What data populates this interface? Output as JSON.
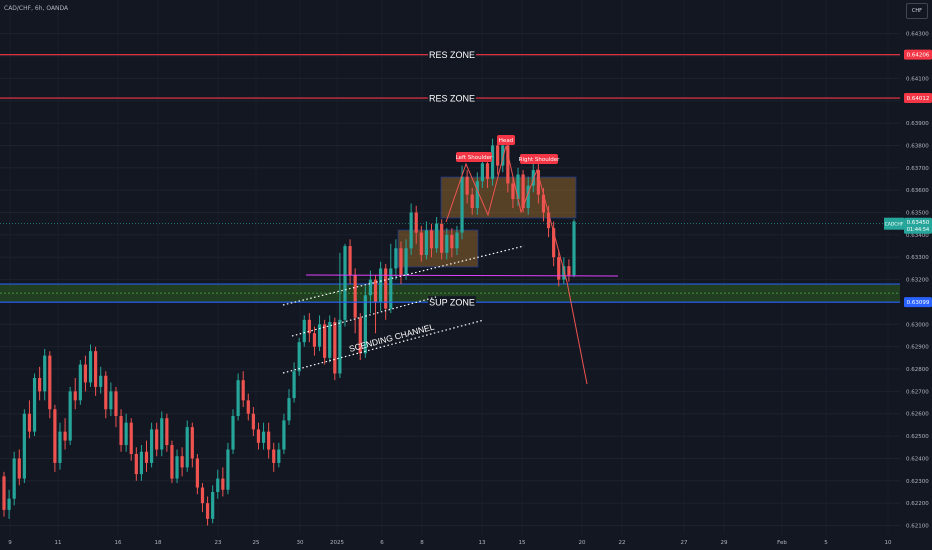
{
  "header": {
    "symbol": "CAD/CHF, 6h, OANDA",
    "currency": "CHF"
  },
  "colors": {
    "background": "#131722",
    "bull": "#26a69a",
    "bear": "#ef5350",
    "res_line": "#f23645",
    "sup_line": "#2962ff",
    "neckline": "#e040fb",
    "zone_fill": "#a8732b",
    "sup_fill": "#2e5e1f",
    "label_bg": "#f23645"
  },
  "chart_data": {
    "type": "candlestick",
    "y_axis": {
      "ticks": [
        "0.64300",
        "0.64200",
        "0.64100",
        "0.64000",
        "0.63900",
        "0.63800",
        "0.63700",
        "0.63600",
        "0.63500",
        "0.63400",
        "0.63300",
        "0.63200",
        "0.63100",
        "0.63000",
        "0.62900",
        "0.62800",
        "0.62700",
        "0.62600",
        "0.62500",
        "0.62400",
        "0.62300",
        "0.62200",
        "0.62100"
      ],
      "range": [
        0.6208,
        0.6437
      ]
    },
    "x_axis": {
      "ticks": [
        "9",
        "11",
        "16",
        "18",
        "23",
        "25",
        "30",
        "2025",
        "6",
        "8",
        "13",
        "15",
        "20",
        "22",
        "27",
        "29",
        "Feb",
        "5",
        "10"
      ]
    },
    "price_labels": [
      {
        "value": "0.64206",
        "price": 0.64206,
        "color": "#f23645"
      },
      {
        "value": "0.64012",
        "price": 0.64012,
        "color": "#f23645"
      },
      {
        "value": "0.63099",
        "price": 0.63099,
        "color": "#2962ff"
      }
    ],
    "current_price": {
      "symbol": "CADCHF",
      "value": "0.63450",
      "countdown": "01:44:54",
      "price": 0.6345
    },
    "levels": [
      {
        "name": "res-zone-upper",
        "label": "RES ZONE",
        "price": 0.64206
      },
      {
        "name": "res-zone-lower",
        "label": "RES ZONE",
        "price": 0.64012
      },
      {
        "name": "sup-zone",
        "label": "SUP ZONE",
        "price": 0.63099
      }
    ],
    "sup_band": [
      0.63099,
      0.6318
    ],
    "channel_label": "SCENDING CHANNEL",
    "pattern_labels": [
      "Left Shoulder",
      "Head",
      "Right Shoulder"
    ],
    "candles": [
      [
        0.6232,
        0.6217,
        0.6234,
        0.6214
      ],
      [
        0.6217,
        0.6222,
        0.6226,
        0.6213
      ],
      [
        0.6222,
        0.624,
        0.6243,
        0.6219
      ],
      [
        0.624,
        0.6231,
        0.6244,
        0.6228
      ],
      [
        0.6231,
        0.626,
        0.6262,
        0.6229
      ],
      [
        0.626,
        0.6252,
        0.6266,
        0.6249
      ],
      [
        0.6252,
        0.6276,
        0.6278,
        0.625
      ],
      [
        0.6276,
        0.627,
        0.6281,
        0.6266
      ],
      [
        0.627,
        0.6286,
        0.6289,
        0.6266
      ],
      [
        0.6286,
        0.6262,
        0.6288,
        0.6258
      ],
      [
        0.6262,
        0.6238,
        0.6264,
        0.6234
      ],
      [
        0.6238,
        0.6252,
        0.6256,
        0.6235
      ],
      [
        0.6252,
        0.6248,
        0.6258,
        0.6244
      ],
      [
        0.6248,
        0.627,
        0.6272,
        0.6246
      ],
      [
        0.627,
        0.6266,
        0.6276,
        0.6262
      ],
      [
        0.6266,
        0.6282,
        0.6284,
        0.6264
      ],
      [
        0.6282,
        0.6274,
        0.6286,
        0.627
      ],
      [
        0.6274,
        0.6288,
        0.6291,
        0.6272
      ],
      [
        0.6288,
        0.6272,
        0.629,
        0.6268
      ],
      [
        0.6272,
        0.6277,
        0.6281,
        0.6269
      ],
      [
        0.6277,
        0.6262,
        0.6279,
        0.6258
      ],
      [
        0.6262,
        0.627,
        0.6274,
        0.6259
      ],
      [
        0.627,
        0.6259,
        0.6272,
        0.6254
      ],
      [
        0.6259,
        0.6246,
        0.6262,
        0.6243
      ],
      [
        0.6246,
        0.6256,
        0.626,
        0.6243
      ],
      [
        0.6256,
        0.6242,
        0.6258,
        0.6239
      ],
      [
        0.6242,
        0.6233,
        0.6245,
        0.623
      ],
      [
        0.6233,
        0.6243,
        0.6246,
        0.623
      ],
      [
        0.6243,
        0.6238,
        0.6248,
        0.6234
      ],
      [
        0.6238,
        0.6253,
        0.6256,
        0.6236
      ],
      [
        0.6253,
        0.6244,
        0.6256,
        0.6241
      ],
      [
        0.6244,
        0.6258,
        0.6261,
        0.6241
      ],
      [
        0.6258,
        0.6246,
        0.626,
        0.6243
      ],
      [
        0.6246,
        0.6231,
        0.6248,
        0.6229
      ],
      [
        0.6231,
        0.6241,
        0.6244,
        0.6229
      ],
      [
        0.6241,
        0.6236,
        0.6245,
        0.6232
      ],
      [
        0.6236,
        0.6254,
        0.6257,
        0.6234
      ],
      [
        0.6254,
        0.624,
        0.6256,
        0.6236
      ],
      [
        0.624,
        0.6227,
        0.6242,
        0.6224
      ],
      [
        0.6227,
        0.622,
        0.6229,
        0.6216
      ],
      [
        0.622,
        0.6213,
        0.6223,
        0.621
      ],
      [
        0.6213,
        0.6225,
        0.6228,
        0.6211
      ],
      [
        0.6225,
        0.6231,
        0.6235,
        0.6222
      ],
      [
        0.6231,
        0.6226,
        0.6236,
        0.6223
      ],
      [
        0.6226,
        0.6244,
        0.6247,
        0.6224
      ],
      [
        0.6244,
        0.6259,
        0.6262,
        0.6242
      ],
      [
        0.6259,
        0.6275,
        0.6278,
        0.6257
      ],
      [
        0.6275,
        0.6266,
        0.6279,
        0.6263
      ],
      [
        0.6266,
        0.626,
        0.6269,
        0.6257
      ],
      [
        0.626,
        0.6253,
        0.6263,
        0.625
      ],
      [
        0.6253,
        0.6247,
        0.6256,
        0.6244
      ],
      [
        0.6247,
        0.6252,
        0.6256,
        0.6244
      ],
      [
        0.6252,
        0.6244,
        0.6256,
        0.624
      ],
      [
        0.6244,
        0.6238,
        0.6247,
        0.6234
      ],
      [
        0.6238,
        0.6244,
        0.6247,
        0.6236
      ],
      [
        0.6244,
        0.6257,
        0.626,
        0.6242
      ],
      [
        0.6257,
        0.6267,
        0.6271,
        0.6255
      ],
      [
        0.6267,
        0.6279,
        0.6283,
        0.6265
      ],
      [
        0.6279,
        0.6292,
        0.6294,
        0.6277
      ],
      [
        0.6292,
        0.6302,
        0.6304,
        0.629
      ],
      [
        0.6302,
        0.6296,
        0.6305,
        0.6292
      ],
      [
        0.6296,
        0.629,
        0.6299,
        0.6286
      ],
      [
        0.629,
        0.63,
        0.6304,
        0.6288
      ],
      [
        0.63,
        0.6285,
        0.6302,
        0.6282
      ],
      [
        0.6285,
        0.6301,
        0.6304,
        0.6283
      ],
      [
        0.6301,
        0.6278,
        0.6303,
        0.6275
      ],
      [
        0.6278,
        0.6302,
        0.6332,
        0.6276
      ],
      [
        0.6302,
        0.6335,
        0.6336,
        0.6299
      ],
      [
        0.6335,
        0.6322,
        0.6338,
        0.6318
      ],
      [
        0.6322,
        0.6303,
        0.6325,
        0.6296
      ],
      [
        0.6303,
        0.6287,
        0.6305,
        0.6284
      ],
      [
        0.6287,
        0.6313,
        0.6317,
        0.6285
      ],
      [
        0.6313,
        0.632,
        0.6324,
        0.6305
      ],
      [
        0.632,
        0.631,
        0.6322,
        0.6296
      ],
      [
        0.631,
        0.6325,
        0.6328,
        0.6306
      ],
      [
        0.6325,
        0.6307,
        0.6327,
        0.6302
      ],
      [
        0.6307,
        0.6325,
        0.6336,
        0.6305
      ],
      [
        0.6325,
        0.6334,
        0.6338,
        0.632
      ],
      [
        0.6334,
        0.6322,
        0.6337,
        0.6318
      ],
      [
        0.6322,
        0.6334,
        0.6338,
        0.632
      ],
      [
        0.6334,
        0.635,
        0.6354,
        0.6331
      ],
      [
        0.635,
        0.6341,
        0.6353,
        0.6336
      ],
      [
        0.6341,
        0.6331,
        0.6344,
        0.6328
      ],
      [
        0.6331,
        0.6342,
        0.6346,
        0.6329
      ],
      [
        0.6342,
        0.6334,
        0.6345,
        0.633
      ],
      [
        0.6334,
        0.6345,
        0.6348,
        0.6332
      ],
      [
        0.6345,
        0.6332,
        0.6347,
        0.6329
      ],
      [
        0.6332,
        0.634,
        0.6343,
        0.6329
      ],
      [
        0.634,
        0.6334,
        0.6343,
        0.633
      ],
      [
        0.6334,
        0.6341,
        0.6344,
        0.6331
      ],
      [
        0.6341,
        0.6366,
        0.6371,
        0.6338
      ],
      [
        0.6366,
        0.6358,
        0.6369,
        0.6354
      ],
      [
        0.6358,
        0.6352,
        0.6361,
        0.6349
      ],
      [
        0.6352,
        0.6364,
        0.6368,
        0.6349
      ],
      [
        0.6364,
        0.6372,
        0.6375,
        0.6361
      ],
      [
        0.6372,
        0.6365,
        0.6375,
        0.6361
      ],
      [
        0.6365,
        0.638,
        0.6383,
        0.6362
      ],
      [
        0.638,
        0.6371,
        0.6382,
        0.6367
      ],
      [
        0.6371,
        0.638,
        0.6384,
        0.6368
      ],
      [
        0.638,
        0.6363,
        0.6382,
        0.6359
      ],
      [
        0.6363,
        0.6356,
        0.6366,
        0.6352
      ],
      [
        0.6356,
        0.6367,
        0.637,
        0.6353
      ],
      [
        0.6367,
        0.6352,
        0.6369,
        0.635
      ],
      [
        0.6352,
        0.6362,
        0.6366,
        0.6349
      ],
      [
        0.6362,
        0.6369,
        0.6373,
        0.6359
      ],
      [
        0.6369,
        0.6358,
        0.6372,
        0.6354
      ],
      [
        0.6358,
        0.635,
        0.6361,
        0.6346
      ],
      [
        0.635,
        0.6343,
        0.6353,
        0.6339
      ],
      [
        0.6343,
        0.633,
        0.6346,
        0.6326
      ],
      [
        0.633,
        0.632,
        0.6333,
        0.6317
      ],
      [
        0.632,
        0.6326,
        0.633,
        0.6318
      ],
      [
        0.6326,
        0.6322,
        0.6329,
        0.6319
      ],
      [
        0.6322,
        0.6346,
        0.6347,
        0.6321
      ]
    ]
  }
}
